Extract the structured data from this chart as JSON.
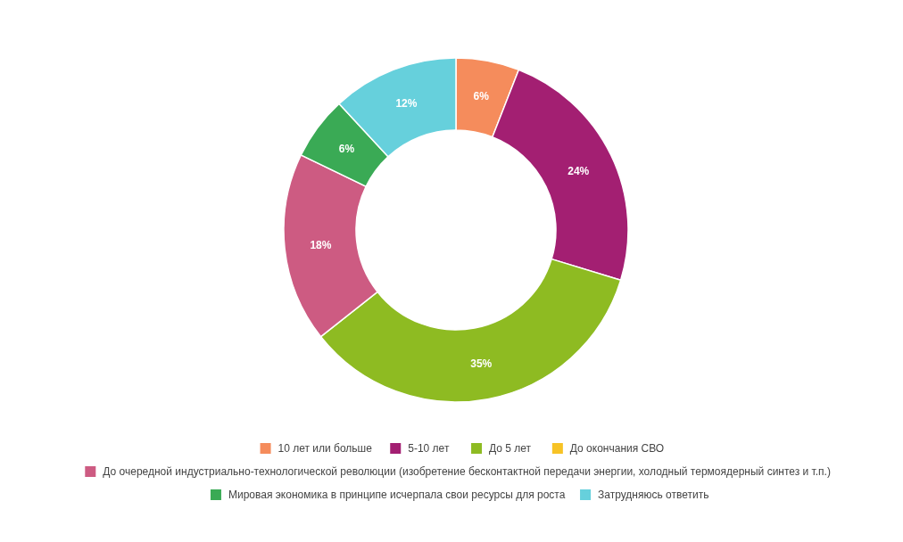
{
  "chart_data": {
    "type": "donut",
    "categories": [
      "10 лет или больше",
      "5-10 лет",
      "До 5 лет",
      "До окончания СВО",
      "До очередной индустриально-технологической революции (изобретение бесконтактной передачи энергии, холодный термоядерный синтез и т.п.)",
      "Мировая экономика в принципе исчерпала свои ресурсы для роста",
      "Затрудняюсь ответить"
    ],
    "values": [
      6,
      24,
      35,
      0,
      18,
      6,
      12
    ],
    "colors": [
      "#f58c5c",
      "#a31f72",
      "#8ebb22",
      "#f7c325",
      "#cd5b82",
      "#3aaa55",
      "#66d0dc"
    ],
    "value_labels": [
      "6%",
      "24%",
      "35%",
      null,
      "18%",
      "6%",
      "12%"
    ],
    "legend": "bottom"
  }
}
